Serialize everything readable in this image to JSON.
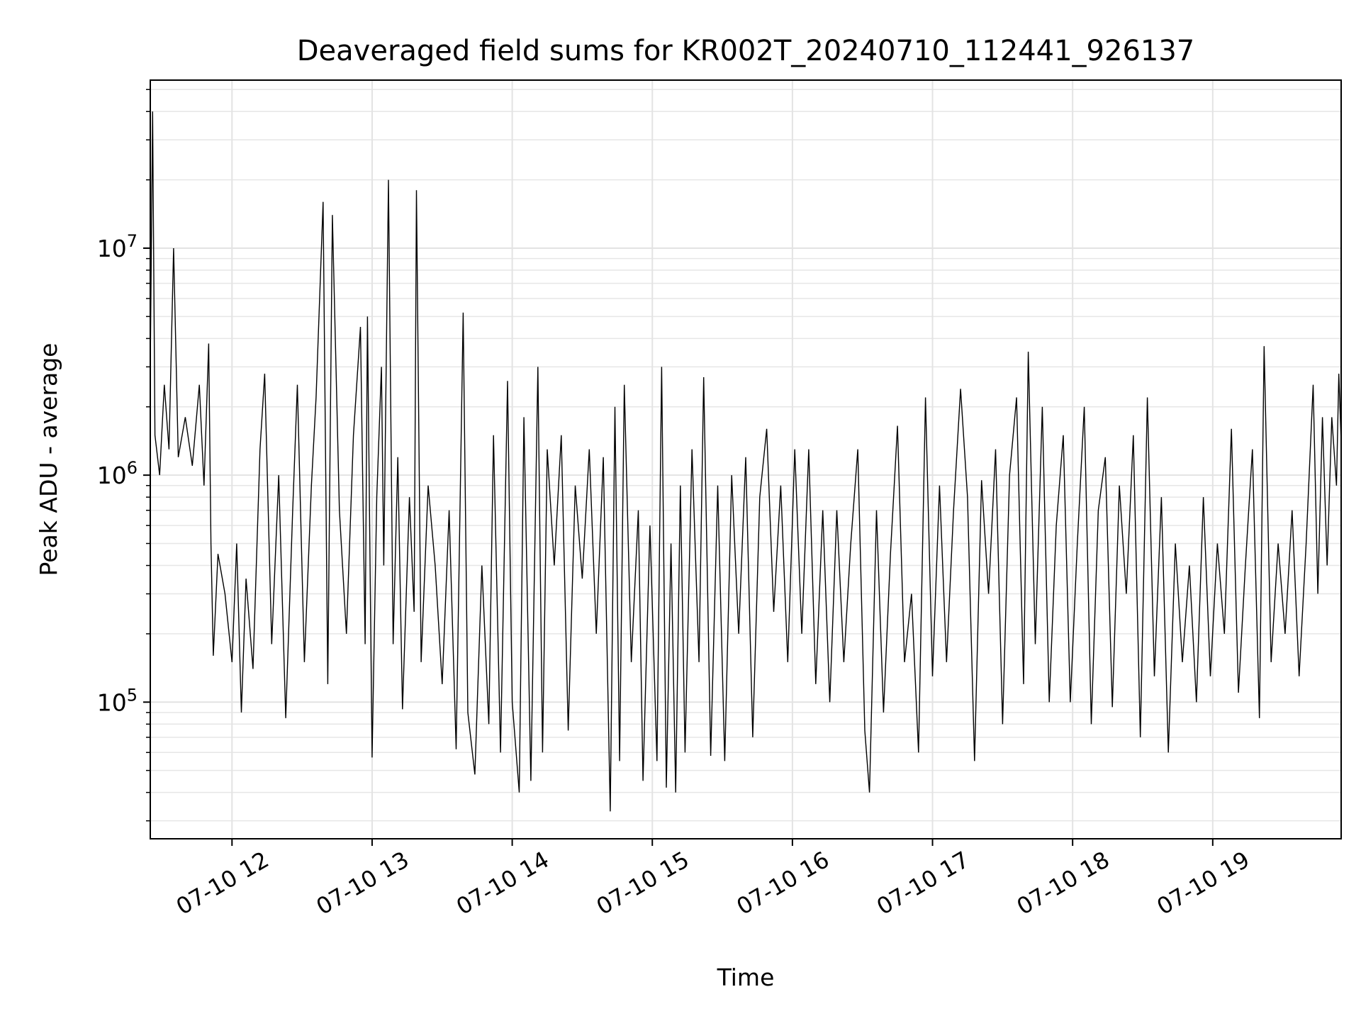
{
  "chart_data": {
    "type": "line",
    "title": "Deaveraged field sums for KR002T_20240710_112441_926137",
    "xlabel": "Time",
    "ylabel": "Peak ADU - average",
    "x_range": [
      "2024-07-10 11:25",
      "2024-07-10 19:55"
    ],
    "yscale": "log",
    "ylim": [
      25000,
      55000000
    ],
    "grid": true,
    "line_color": "#000000",
    "xticks": [
      {
        "at": "2024-07-10 12:00",
        "label": "07-10 12"
      },
      {
        "at": "2024-07-10 13:00",
        "label": "07-10 13"
      },
      {
        "at": "2024-07-10 14:00",
        "label": "07-10 14"
      },
      {
        "at": "2024-07-10 15:00",
        "label": "07-10 15"
      },
      {
        "at": "2024-07-10 16:00",
        "label": "07-10 16"
      },
      {
        "at": "2024-07-10 17:00",
        "label": "07-10 17"
      },
      {
        "at": "2024-07-10 18:00",
        "label": "07-10 18"
      },
      {
        "at": "2024-07-10 19:00",
        "label": "07-10 19"
      }
    ],
    "yticks": [
      {
        "value": 100000,
        "base": "10",
        "exp": "5"
      },
      {
        "value": 1000000,
        "base": "10",
        "exp": "6"
      },
      {
        "value": 10000000,
        "base": "10",
        "exp": "7"
      }
    ],
    "series": [
      {
        "points": [
          [
            "11:25",
            3000000
          ],
          [
            "11:26",
            40000000
          ],
          [
            "11:27",
            1500000
          ],
          [
            "11:29",
            1000000
          ],
          [
            "11:31",
            2500000
          ],
          [
            "11:33",
            1300000
          ],
          [
            "11:35",
            10000000
          ],
          [
            "11:37",
            1200000
          ],
          [
            "11:40",
            1800000
          ],
          [
            "11:43",
            1100000
          ],
          [
            "11:46",
            2500000
          ],
          [
            "11:48",
            900000
          ],
          [
            "11:50",
            3800000
          ],
          [
            "11:51",
            500000
          ],
          [
            "11:52",
            160000
          ],
          [
            "11:54",
            450000
          ],
          [
            "11:57",
            300000
          ],
          [
            "12:00",
            150000
          ],
          [
            "12:02",
            500000
          ],
          [
            "12:04",
            90000
          ],
          [
            "12:06",
            350000
          ],
          [
            "12:09",
            140000
          ],
          [
            "12:12",
            1300000
          ],
          [
            "12:14",
            2800000
          ],
          [
            "12:17",
            180000
          ],
          [
            "12:20",
            1000000
          ],
          [
            "12:23",
            85000
          ],
          [
            "12:26",
            700000
          ],
          [
            "12:28",
            2500000
          ],
          [
            "12:31",
            150000
          ],
          [
            "12:34",
            900000
          ],
          [
            "12:36",
            2200000
          ],
          [
            "12:39",
            16000000
          ],
          [
            "12:41",
            120000
          ],
          [
            "12:43",
            14000000
          ],
          [
            "12:46",
            700000
          ],
          [
            "12:49",
            200000
          ],
          [
            "12:52",
            1500000
          ],
          [
            "12:55",
            4500000
          ],
          [
            "12:57",
            180000
          ],
          [
            "12:58",
            5000000
          ],
          [
            "13:00",
            57000
          ],
          [
            "13:02",
            800000
          ],
          [
            "13:04",
            3000000
          ],
          [
            "13:05",
            400000
          ],
          [
            "13:07",
            20000000
          ],
          [
            "13:09",
            180000
          ],
          [
            "13:11",
            1200000
          ],
          [
            "13:13",
            93000
          ],
          [
            "13:16",
            800000
          ],
          [
            "13:18",
            250000
          ],
          [
            "13:19",
            18000000
          ],
          [
            "13:21",
            150000
          ],
          [
            "13:24",
            900000
          ],
          [
            "13:27",
            400000
          ],
          [
            "13:30",
            120000
          ],
          [
            "13:33",
            700000
          ],
          [
            "13:36",
            62000
          ],
          [
            "13:39",
            5200000
          ],
          [
            "13:41",
            90000
          ],
          [
            "13:44",
            48000
          ],
          [
            "13:47",
            400000
          ],
          [
            "13:50",
            80000
          ],
          [
            "13:52",
            1500000
          ],
          [
            "13:55",
            60000
          ],
          [
            "13:58",
            2600000
          ],
          [
            "14:00",
            100000
          ],
          [
            "14:03",
            40000
          ],
          [
            "14:05",
            1800000
          ],
          [
            "14:08",
            45000
          ],
          [
            "14:11",
            3000000
          ],
          [
            "14:13",
            60000
          ],
          [
            "14:15",
            1300000
          ],
          [
            "14:18",
            400000
          ],
          [
            "14:21",
            1500000
          ],
          [
            "14:24",
            75000
          ],
          [
            "14:27",
            900000
          ],
          [
            "14:30",
            350000
          ],
          [
            "14:33",
            1300000
          ],
          [
            "14:36",
            200000
          ],
          [
            "14:39",
            1200000
          ],
          [
            "14:42",
            33000
          ],
          [
            "14:44",
            2000000
          ],
          [
            "14:46",
            55000
          ],
          [
            "14:48",
            2500000
          ],
          [
            "14:51",
            150000
          ],
          [
            "14:54",
            700000
          ],
          [
            "14:56",
            45000
          ],
          [
            "14:59",
            600000
          ],
          [
            "15:02",
            55000
          ],
          [
            "15:04",
            3000000
          ],
          [
            "15:06",
            42000
          ],
          [
            "15:08",
            500000
          ],
          [
            "15:10",
            40000
          ],
          [
            "15:12",
            900000
          ],
          [
            "15:14",
            60000
          ],
          [
            "15:17",
            1300000
          ],
          [
            "15:20",
            150000
          ],
          [
            "15:22",
            2700000
          ],
          [
            "15:25",
            58000
          ],
          [
            "15:28",
            900000
          ],
          [
            "15:31",
            55000
          ],
          [
            "15:34",
            1000000
          ],
          [
            "15:37",
            200000
          ],
          [
            "15:40",
            1200000
          ],
          [
            "15:43",
            70000
          ],
          [
            "15:46",
            800000
          ],
          [
            "15:49",
            1600000
          ],
          [
            "15:52",
            250000
          ],
          [
            "15:55",
            900000
          ],
          [
            "15:58",
            150000
          ],
          [
            "16:01",
            1300000
          ],
          [
            "16:04",
            200000
          ],
          [
            "16:07",
            1300000
          ],
          [
            "16:10",
            120000
          ],
          [
            "16:13",
            700000
          ],
          [
            "16:16",
            100000
          ],
          [
            "16:19",
            700000
          ],
          [
            "16:22",
            150000
          ],
          [
            "16:25",
            500000
          ],
          [
            "16:28",
            1300000
          ],
          [
            "16:31",
            75000
          ],
          [
            "16:33",
            40000
          ],
          [
            "16:36",
            700000
          ],
          [
            "16:39",
            90000
          ],
          [
            "16:42",
            450000
          ],
          [
            "16:45",
            1650000
          ],
          [
            "16:48",
            150000
          ],
          [
            "16:51",
            300000
          ],
          [
            "16:54",
            60000
          ],
          [
            "16:57",
            2200000
          ],
          [
            "17:00",
            130000
          ],
          [
            "17:03",
            900000
          ],
          [
            "17:06",
            150000
          ],
          [
            "17:09",
            700000
          ],
          [
            "17:12",
            2400000
          ],
          [
            "17:15",
            800000
          ],
          [
            "17:18",
            55000
          ],
          [
            "17:21",
            950000
          ],
          [
            "17:24",
            300000
          ],
          [
            "17:27",
            1300000
          ],
          [
            "17:30",
            80000
          ],
          [
            "17:33",
            1000000
          ],
          [
            "17:36",
            2200000
          ],
          [
            "17:39",
            120000
          ],
          [
            "17:41",
            3500000
          ],
          [
            "17:44",
            180000
          ],
          [
            "17:47",
            2000000
          ],
          [
            "17:50",
            100000
          ],
          [
            "17:53",
            600000
          ],
          [
            "17:56",
            1500000
          ],
          [
            "17:59",
            100000
          ],
          [
            "18:02",
            500000
          ],
          [
            "18:05",
            2000000
          ],
          [
            "18:08",
            80000
          ],
          [
            "18:11",
            700000
          ],
          [
            "18:14",
            1200000
          ],
          [
            "18:17",
            95000
          ],
          [
            "18:20",
            900000
          ],
          [
            "18:23",
            300000
          ],
          [
            "18:26",
            1500000
          ],
          [
            "18:29",
            70000
          ],
          [
            "18:32",
            2200000
          ],
          [
            "18:35",
            130000
          ],
          [
            "18:38",
            800000
          ],
          [
            "18:41",
            60000
          ],
          [
            "18:44",
            500000
          ],
          [
            "18:47",
            150000
          ],
          [
            "18:50",
            400000
          ],
          [
            "18:53",
            100000
          ],
          [
            "18:56",
            800000
          ],
          [
            "18:59",
            130000
          ],
          [
            "19:02",
            500000
          ],
          [
            "19:05",
            200000
          ],
          [
            "19:08",
            1600000
          ],
          [
            "19:11",
            110000
          ],
          [
            "19:14",
            400000
          ],
          [
            "19:17",
            1300000
          ],
          [
            "19:20",
            85000
          ],
          [
            "19:22",
            3700000
          ],
          [
            "19:25",
            150000
          ],
          [
            "19:28",
            500000
          ],
          [
            "19:31",
            200000
          ],
          [
            "19:34",
            700000
          ],
          [
            "19:37",
            130000
          ],
          [
            "19:40",
            500000
          ],
          [
            "19:43",
            2500000
          ],
          [
            "19:45",
            300000
          ],
          [
            "19:47",
            1800000
          ],
          [
            "19:49",
            400000
          ],
          [
            "19:51",
            1800000
          ],
          [
            "19:53",
            900000
          ],
          [
            "19:54",
            2800000
          ],
          [
            "19:55",
            1400000
          ]
        ]
      }
    ]
  }
}
